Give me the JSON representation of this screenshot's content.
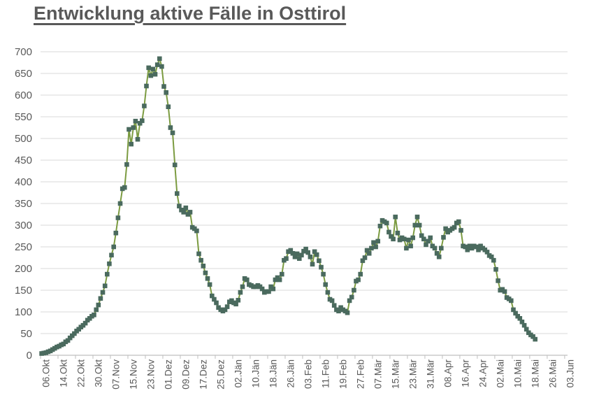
{
  "title": "Entwicklung aktive Fälle in Osttirol",
  "colors": {
    "line": "#7b9b40",
    "marker": "#4a6a5e",
    "grid": "#d9d9d9",
    "axis": "#bfbfbf",
    "text": "#595959",
    "background": "#ffffff"
  },
  "chart_data": {
    "type": "line",
    "title": "Entwicklung aktive Fälle in Osttirol",
    "xlabel": "",
    "ylabel": "",
    "ylim": [
      0,
      700
    ],
    "y_ticks": [
      0,
      50,
      100,
      150,
      200,
      250,
      300,
      350,
      400,
      450,
      500,
      550,
      600,
      650,
      700
    ],
    "grid": "horizontal",
    "legend": "none",
    "marker": "square",
    "x_tick_interval_days": 8,
    "x_tick_labels": [
      "06.Okt",
      "14.Okt",
      "22.Okt",
      "30.Okt",
      "07.Nov",
      "15.Nov",
      "23.Nov",
      "01.Dez",
      "09.Dez",
      "17.Dez",
      "25.Dez",
      "02.Jän",
      "10.Jän",
      "18.Jän",
      "26.Jän",
      "03.Feb",
      "11.Feb",
      "19.Feb",
      "27.Feb",
      "07.Mär",
      "15.Mär",
      "23.Mär",
      "31.Mär",
      "08.Apr",
      "16.Apr",
      "24.Apr",
      "02.Mai",
      "10.Mai",
      "18.Mai",
      "26.Mai",
      "03.Jun"
    ],
    "x_start_label": "06.Okt",
    "x_axis_total_days": 241,
    "values": [
      4,
      5,
      6,
      8,
      10,
      13,
      16,
      19,
      21,
      24,
      26,
      31,
      34,
      40,
      45,
      50,
      56,
      60,
      65,
      69,
      74,
      81,
      85,
      90,
      93,
      105,
      116,
      131,
      145,
      160,
      187,
      211,
      231,
      250,
      282,
      317,
      350,
      384,
      387,
      440,
      521,
      487,
      525,
      540,
      498,
      535,
      541,
      575,
      621,
      663,
      645,
      660,
      648,
      670,
      684,
      666,
      620,
      606,
      573,
      525,
      513,
      439,
      373,
      344,
      335,
      330,
      340,
      325,
      330,
      295,
      292,
      287,
      234,
      219,
      206,
      190,
      177,
      163,
      137,
      129,
      121,
      110,
      105,
      102,
      105,
      112,
      123,
      126,
      121,
      118,
      127,
      145,
      158,
      177,
      174,
      163,
      161,
      158,
      158,
      161,
      158,
      153,
      145,
      147,
      147,
      158,
      153,
      174,
      179,
      174,
      187,
      219,
      223,
      239,
      242,
      235,
      227,
      234,
      223,
      231,
      240,
      245,
      237,
      227,
      210,
      239,
      232,
      218,
      203,
      187,
      163,
      145,
      129,
      126,
      115,
      105,
      102,
      110,
      105,
      102,
      98,
      126,
      134,
      150,
      171,
      174,
      187,
      218,
      225,
      242,
      235,
      247,
      260,
      250,
      263,
      298,
      311,
      308,
      305,
      284,
      274,
      268,
      319,
      282,
      266,
      271,
      268,
      247,
      266,
      252,
      271,
      300,
      319,
      300,
      276,
      268,
      255,
      263,
      271,
      252,
      247,
      235,
      227,
      247,
      272,
      292,
      284,
      288,
      292,
      295,
      305,
      308,
      288,
      252,
      250,
      243,
      252,
      247,
      252,
      250,
      243,
      252,
      247,
      243,
      238,
      230,
      227,
      219,
      198,
      172,
      150,
      152,
      147,
      133,
      130,
      126,
      105,
      97,
      90,
      85,
      77,
      69,
      60,
      52,
      47,
      43,
      37
    ]
  }
}
